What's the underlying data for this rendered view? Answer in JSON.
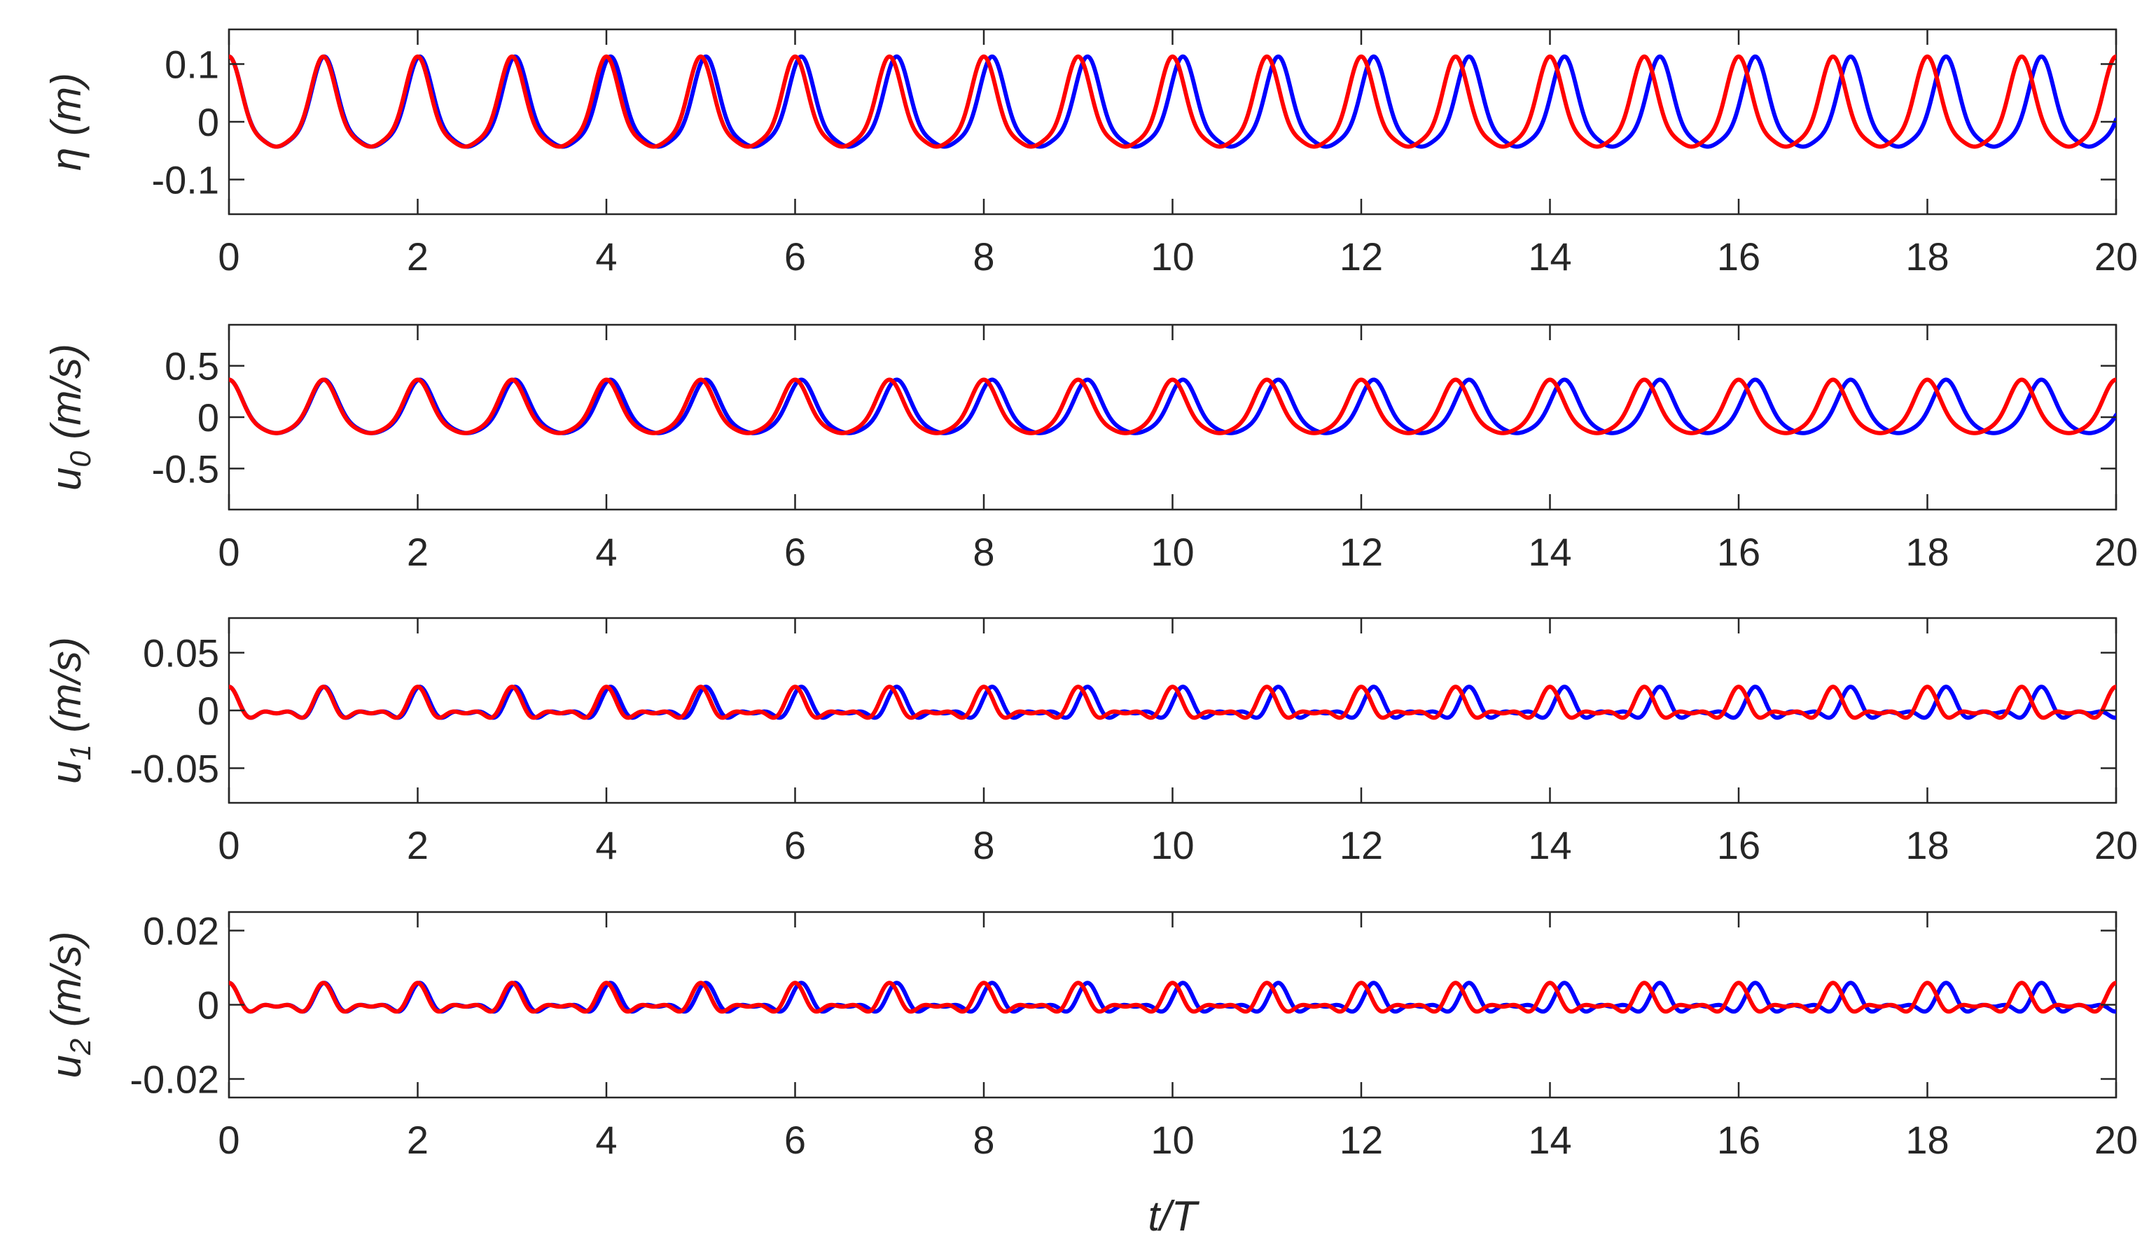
{
  "chart_data": [
    {
      "type": "line",
      "ylabel": "η (m)",
      "ylabel_main": "η",
      "ylabel_sub": "",
      "ylabel_unit": "(m)",
      "xlim": [
        0,
        20
      ],
      "ylim": [
        -0.16,
        0.16
      ],
      "xticks": [
        0,
        2,
        4,
        6,
        8,
        10,
        12,
        14,
        16,
        18,
        20
      ],
      "yticks": [
        -0.1,
        0,
        0.1
      ],
      "ytick_labels": [
        "-0.1",
        "0",
        "0.1"
      ],
      "grid": false,
      "series": [
        {
          "color": "#0000ff",
          "period": 1.011,
          "mean": 0.013,
          "a1": 0.072,
          "a2": 0.022,
          "a3": 0.006,
          "start_phase": 0.0
        },
        {
          "color": "#ff0000",
          "period": 1.0,
          "mean": 0.013,
          "a1": 0.072,
          "a2": 0.022,
          "a3": 0.006,
          "start_phase": 0.0
        }
      ]
    },
    {
      "type": "line",
      "ylabel": "u0 (m/s)",
      "ylabel_main": "u",
      "ylabel_sub": "0",
      "ylabel_unit": "(m/s)",
      "xlim": [
        0,
        20
      ],
      "ylim": [
        -0.9,
        0.9
      ],
      "xticks": [
        0,
        2,
        4,
        6,
        8,
        10,
        12,
        14,
        16,
        18,
        20
      ],
      "yticks": [
        -0.5,
        0,
        0.5
      ],
      "ytick_labels": [
        "-0.5",
        "0",
        "0.5"
      ],
      "grid": false,
      "series": [
        {
          "color": "#0000ff",
          "period": 1.011,
          "mean": 0.04,
          "a1": 0.245,
          "a2": 0.065,
          "a3": 0.015,
          "start_phase": 0.0
        },
        {
          "color": "#ff0000",
          "period": 1.0,
          "mean": 0.04,
          "a1": 0.245,
          "a2": 0.065,
          "a3": 0.015,
          "start_phase": 0.0
        }
      ]
    },
    {
      "type": "line",
      "ylabel": "u1 (m/s)",
      "ylabel_main": "u",
      "ylabel_sub": "1",
      "ylabel_unit": "(m/s)",
      "xlim": [
        0,
        20
      ],
      "ylim": [
        -0.08,
        0.08
      ],
      "xticks": [
        0,
        2,
        4,
        6,
        8,
        10,
        12,
        14,
        16,
        18,
        20
      ],
      "yticks": [
        -0.05,
        0,
        0.05
      ],
      "ytick_labels": [
        "-0.05",
        "0",
        "0.05"
      ],
      "grid": false,
      "series": [
        {
          "color": "#0000ff",
          "period": 1.011,
          "mean": 0.0015,
          "a1": 0.0075,
          "a2": 0.0075,
          "a3": 0.004,
          "start_phase": 0.0
        },
        {
          "color": "#ff0000",
          "period": 1.0,
          "mean": 0.0015,
          "a1": 0.0075,
          "a2": 0.0075,
          "a3": 0.004,
          "start_phase": 0.0
        }
      ]
    },
    {
      "type": "line",
      "ylabel": "u2 (m/s)",
      "ylabel_main": "u",
      "ylabel_sub": "2",
      "ylabel_unit": "(m/s)",
      "xlabel": "t/T",
      "xlim": [
        0,
        20
      ],
      "ylim": [
        -0.025,
        0.025
      ],
      "xticks": [
        0,
        2,
        4,
        6,
        8,
        10,
        12,
        14,
        16,
        18,
        20
      ],
      "yticks": [
        -0.02,
        0,
        0.02
      ],
      "ytick_labels": [
        "-0.02",
        "0",
        "0.02"
      ],
      "grid": false,
      "series": [
        {
          "color": "#0000ff",
          "period": 1.011,
          "mean": 0.0005,
          "a1": 0.002,
          "a2": 0.0022,
          "a3": 0.0012,
          "start_phase": 0.0
        },
        {
          "color": "#ff0000",
          "period": 1.0,
          "mean": 0.0005,
          "a1": 0.002,
          "a2": 0.0022,
          "a3": 0.0012,
          "start_phase": 0.0
        }
      ]
    }
  ]
}
